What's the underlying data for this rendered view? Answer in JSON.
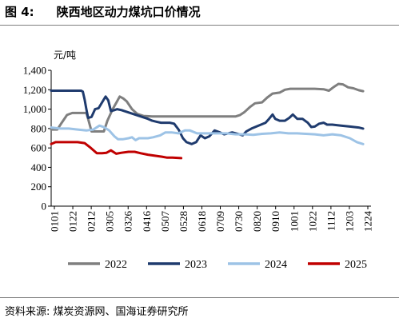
{
  "figure": {
    "label": "图 4:",
    "title": "陕西地区动力煤坑口价情况",
    "source": "资料来源: 煤炭资源网、国海证券研究所"
  },
  "chart_data": {
    "type": "line",
    "ylabel": "元/吨",
    "ylim": [
      0,
      1400
    ],
    "yticks": [
      0,
      200,
      400,
      600,
      800,
      1000,
      1200,
      1400
    ],
    "ytick_labels": [
      "0",
      "200",
      "400",
      "600",
      "800",
      "1,000",
      "1,200",
      "1,400"
    ],
    "x_tick_labels": [
      "0101",
      "0122",
      "0212",
      "0305",
      "0326",
      "0416",
      "0507",
      "0528",
      "0618",
      "0709",
      "0730",
      "0820",
      "0910",
      "1001",
      "1022",
      "1112",
      "1203",
      "1224"
    ],
    "grid": false,
    "legend_position": "bottom",
    "x_domain": [
      0,
      364
    ],
    "series": [
      {
        "name": "2022",
        "color": "#7f7f7f",
        "points": [
          [
            0,
            790
          ],
          [
            7,
            790
          ],
          [
            12,
            860
          ],
          [
            18,
            940
          ],
          [
            24,
            960
          ],
          [
            40,
            960
          ],
          [
            42,
            900
          ],
          [
            46,
            770
          ],
          [
            55,
            770
          ],
          [
            60,
            770
          ],
          [
            64,
            880
          ],
          [
            70,
            1000
          ],
          [
            75,
            1080
          ],
          [
            78,
            1130
          ],
          [
            82,
            1110
          ],
          [
            86,
            1080
          ],
          [
            92,
            1000
          ],
          [
            98,
            950
          ],
          [
            105,
            930
          ],
          [
            115,
            925
          ],
          [
            150,
            925
          ],
          [
            200,
            925
          ],
          [
            210,
            925
          ],
          [
            215,
            940
          ],
          [
            220,
            970
          ],
          [
            226,
            1020
          ],
          [
            232,
            1060
          ],
          [
            240,
            1070
          ],
          [
            246,
            1120
          ],
          [
            252,
            1160
          ],
          [
            260,
            1170
          ],
          [
            266,
            1200
          ],
          [
            272,
            1210
          ],
          [
            285,
            1210
          ],
          [
            300,
            1210
          ],
          [
            310,
            1205
          ],
          [
            316,
            1190
          ],
          [
            322,
            1230
          ],
          [
            327,
            1260
          ],
          [
            332,
            1255
          ],
          [
            338,
            1225
          ],
          [
            344,
            1215
          ],
          [
            350,
            1195
          ],
          [
            355,
            1185
          ]
        ]
      },
      {
        "name": "2023",
        "color": "#1f3b6e",
        "points": [
          [
            0,
            1190
          ],
          [
            20,
            1190
          ],
          [
            34,
            1190
          ],
          [
            36,
            1180
          ],
          [
            38,
            1100
          ],
          [
            40,
            1000
          ],
          [
            42,
            910
          ],
          [
            46,
            920
          ],
          [
            50,
            1000
          ],
          [
            54,
            1010
          ],
          [
            60,
            1100
          ],
          [
            62,
            1130
          ],
          [
            65,
            1090
          ],
          [
            68,
            980
          ],
          [
            72,
            990
          ],
          [
            75,
            1000
          ],
          [
            80,
            990
          ],
          [
            90,
            960
          ],
          [
            100,
            930
          ],
          [
            110,
            900
          ],
          [
            115,
            880
          ],
          [
            120,
            870
          ],
          [
            125,
            860
          ],
          [
            135,
            860
          ],
          [
            140,
            850
          ],
          [
            145,
            790
          ],
          [
            150,
            700
          ],
          [
            154,
            660
          ],
          [
            160,
            640
          ],
          [
            165,
            660
          ],
          [
            170,
            730
          ],
          [
            175,
            700
          ],
          [
            180,
            720
          ],
          [
            186,
            780
          ],
          [
            192,
            760
          ],
          [
            197,
            740
          ],
          [
            206,
            760
          ],
          [
            214,
            740
          ],
          [
            218,
            730
          ],
          [
            222,
            770
          ],
          [
            228,
            800
          ],
          [
            236,
            830
          ],
          [
            244,
            860
          ],
          [
            248,
            900
          ],
          [
            252,
            945
          ],
          [
            255,
            900
          ],
          [
            260,
            880
          ],
          [
            266,
            880
          ],
          [
            271,
            910
          ],
          [
            275,
            945
          ],
          [
            280,
            900
          ],
          [
            286,
            900
          ],
          [
            292,
            860
          ],
          [
            296,
            815
          ],
          [
            300,
            820
          ],
          [
            305,
            850
          ],
          [
            310,
            860
          ],
          [
            314,
            840
          ],
          [
            320,
            840
          ],
          [
            330,
            830
          ],
          [
            340,
            820
          ],
          [
            350,
            810
          ],
          [
            355,
            800
          ]
        ]
      },
      {
        "name": "2024",
        "color": "#9dc3e6",
        "points": [
          [
            0,
            810
          ],
          [
            10,
            800
          ],
          [
            20,
            800
          ],
          [
            30,
            790
          ],
          [
            40,
            780
          ],
          [
            48,
            790
          ],
          [
            55,
            830
          ],
          [
            60,
            815
          ],
          [
            66,
            780
          ],
          [
            72,
            720
          ],
          [
            76,
            690
          ],
          [
            82,
            690
          ],
          [
            88,
            700
          ],
          [
            92,
            710
          ],
          [
            96,
            680
          ],
          [
            100,
            700
          ],
          [
            104,
            700
          ],
          [
            110,
            700
          ],
          [
            116,
            710
          ],
          [
            124,
            730
          ],
          [
            130,
            760
          ],
          [
            137,
            760
          ],
          [
            145,
            750
          ],
          [
            152,
            780
          ],
          [
            158,
            780
          ],
          [
            166,
            750
          ],
          [
            178,
            750
          ],
          [
            190,
            750
          ],
          [
            200,
            750
          ],
          [
            210,
            740
          ],
          [
            220,
            740
          ],
          [
            230,
            735
          ],
          [
            240,
            745
          ],
          [
            250,
            750
          ],
          [
            260,
            760
          ],
          [
            270,
            750
          ],
          [
            280,
            750
          ],
          [
            290,
            745
          ],
          [
            300,
            740
          ],
          [
            310,
            730
          ],
          [
            320,
            740
          ],
          [
            330,
            730
          ],
          [
            340,
            700
          ],
          [
            348,
            660
          ],
          [
            355,
            640
          ]
        ]
      },
      {
        "name": "2025",
        "color": "#c00000",
        "points": [
          [
            0,
            640
          ],
          [
            5,
            660
          ],
          [
            10,
            660
          ],
          [
            18,
            660
          ],
          [
            30,
            660
          ],
          [
            38,
            650
          ],
          [
            45,
            600
          ],
          [
            52,
            545
          ],
          [
            58,
            545
          ],
          [
            63,
            550
          ],
          [
            68,
            575
          ],
          [
            74,
            540
          ],
          [
            80,
            550
          ],
          [
            88,
            560
          ],
          [
            95,
            560
          ],
          [
            102,
            545
          ],
          [
            110,
            530
          ],
          [
            118,
            520
          ],
          [
            126,
            510
          ],
          [
            132,
            500
          ],
          [
            138,
            500
          ],
          [
            148,
            495
          ]
        ]
      }
    ]
  }
}
